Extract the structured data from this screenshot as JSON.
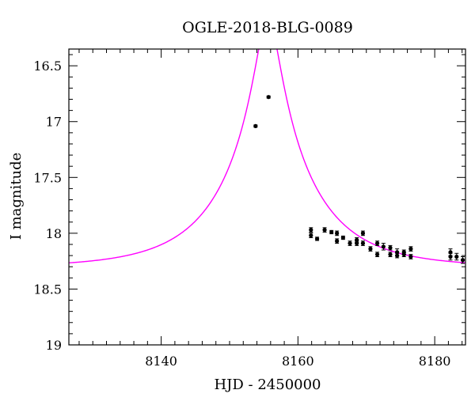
{
  "chart_data": {
    "type": "scatter",
    "title": "OGLE-2018-BLG-0089",
    "xlabel": "HJD - 2450000",
    "ylabel": "I magnitude",
    "xlim": [
      8126.5,
      8184.5
    ],
    "ylim": [
      19.0,
      16.35
    ],
    "y_inverted": true,
    "xticks_major": [
      8140,
      8160,
      8180
    ],
    "xticks_major_labels": [
      "8140",
      "8160",
      "8180"
    ],
    "yticks_major": [
      16.5,
      17,
      17.5,
      18,
      18.5,
      19
    ],
    "yticks_major_labels": [
      "16.5",
      "17",
      "17.5",
      "18",
      "18.5",
      "19"
    ],
    "grid": false,
    "colors": {
      "model": "#ff00ff",
      "data": "#000000"
    },
    "series": [
      {
        "type": "scatter",
        "points": [
          {
            "x": 8153.8,
            "y": 17.04,
            "err": 0.01
          },
          {
            "x": 8155.7,
            "y": 16.78,
            "err": 0.01
          },
          {
            "x": 8161.9,
            "y": 17.97,
            "err": 0.02
          },
          {
            "x": 8161.9,
            "y": 18.02,
            "err": 0.02
          },
          {
            "x": 8162.8,
            "y": 18.05,
            "err": 0.015
          },
          {
            "x": 8163.9,
            "y": 17.97,
            "err": 0.02
          },
          {
            "x": 8164.9,
            "y": 17.99,
            "err": 0.015
          },
          {
            "x": 8165.7,
            "y": 18.0,
            "err": 0.02
          },
          {
            "x": 8165.7,
            "y": 18.07,
            "err": 0.02
          },
          {
            "x": 8166.6,
            "y": 18.04,
            "err": 0.015
          },
          {
            "x": 8167.6,
            "y": 18.09,
            "err": 0.02
          },
          {
            "x": 8168.6,
            "y": 18.06,
            "err": 0.02
          },
          {
            "x": 8168.6,
            "y": 18.09,
            "err": 0.02
          },
          {
            "x": 8169.5,
            "y": 18.0,
            "err": 0.02
          },
          {
            "x": 8169.5,
            "y": 18.09,
            "err": 0.02
          },
          {
            "x": 8170.6,
            "y": 18.14,
            "err": 0.02
          },
          {
            "x": 8171.6,
            "y": 18.09,
            "err": 0.02
          },
          {
            "x": 8171.6,
            "y": 18.19,
            "err": 0.02
          },
          {
            "x": 8172.5,
            "y": 18.12,
            "err": 0.03
          },
          {
            "x": 8173.5,
            "y": 18.13,
            "err": 0.02
          },
          {
            "x": 8173.5,
            "y": 18.19,
            "err": 0.02
          },
          {
            "x": 8174.5,
            "y": 18.17,
            "err": 0.03
          },
          {
            "x": 8174.5,
            "y": 18.2,
            "err": 0.02
          },
          {
            "x": 8175.5,
            "y": 18.17,
            "err": 0.02
          },
          {
            "x": 8175.5,
            "y": 18.19,
            "err": 0.02
          },
          {
            "x": 8176.5,
            "y": 18.14,
            "err": 0.02
          },
          {
            "x": 8176.5,
            "y": 18.21,
            "err": 0.02
          },
          {
            "x": 8182.3,
            "y": 18.17,
            "err": 0.03
          },
          {
            "x": 8182.3,
            "y": 18.21,
            "err": 0.03
          },
          {
            "x": 8183.2,
            "y": 18.21,
            "err": 0.03
          },
          {
            "x": 8184.1,
            "y": 18.24,
            "err": 0.03
          }
        ]
      },
      {
        "type": "line",
        "model": {
          "kind": "microlensing_pspl",
          "t0": 8155.6,
          "tE": 12.5,
          "u0": 0.128,
          "baseline_mag": 18.306
        }
      }
    ]
  }
}
